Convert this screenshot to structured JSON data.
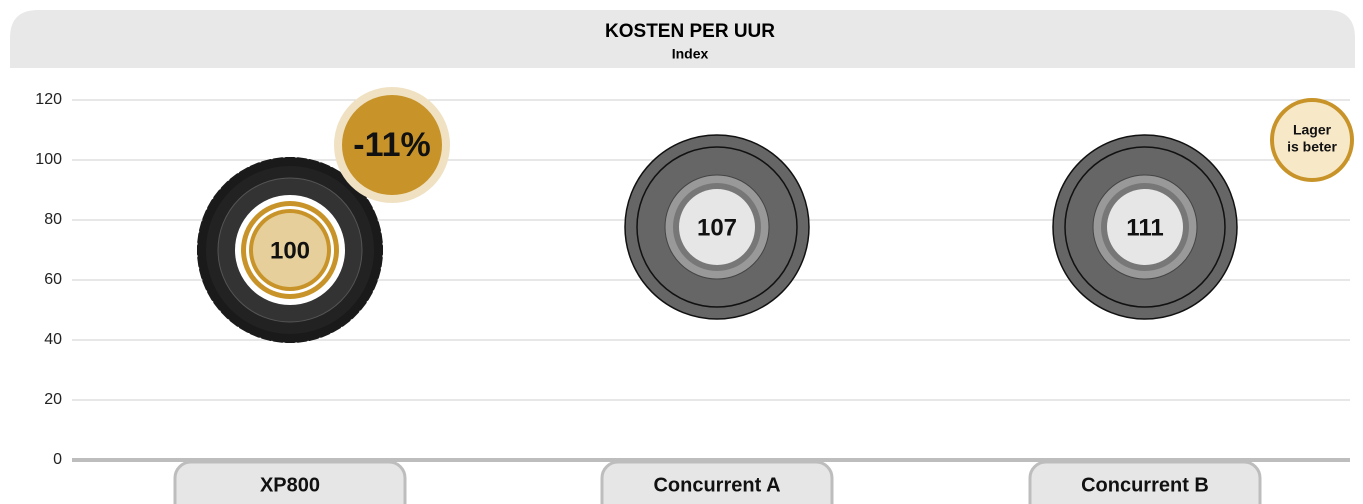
{
  "chart_data": {
    "type": "tire",
    "title": "KOSTEN PER UUR",
    "subtitle": "Index",
    "categories": [
      "XP800",
      "Concurrent A",
      "Concurrent B"
    ],
    "values": [
      100,
      107,
      111
    ],
    "colors": [
      "#c8942a",
      "#777777",
      "#777777"
    ],
    "ylim": [
      0,
      120
    ],
    "yticks": [
      0,
      20,
      40,
      60,
      80,
      100,
      120
    ],
    "grid": true,
    "annotations": {
      "difference": "-11%",
      "note": [
        "Lager",
        "is beter"
      ]
    }
  }
}
